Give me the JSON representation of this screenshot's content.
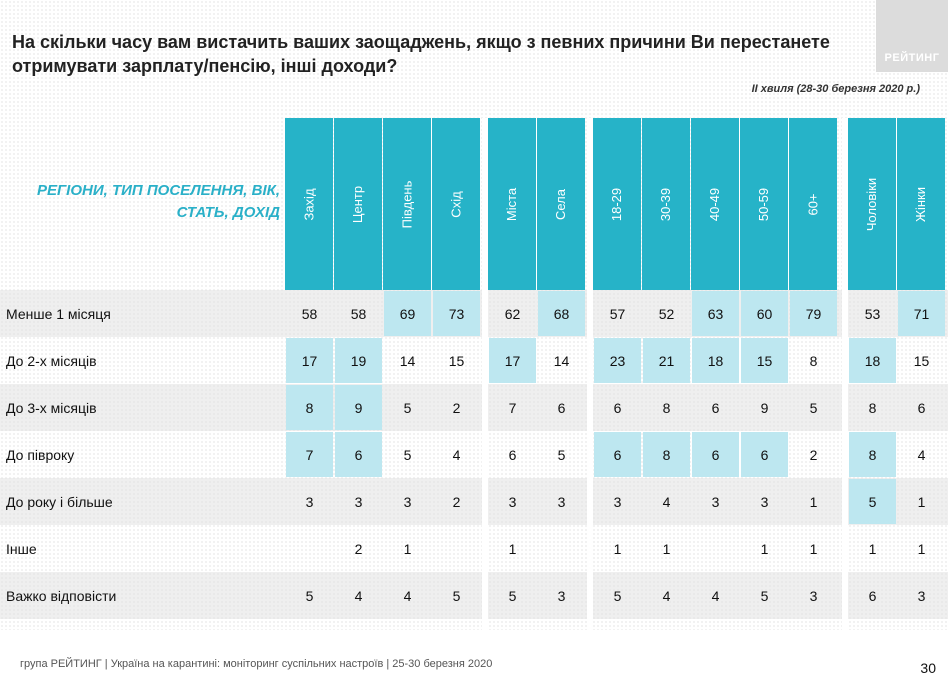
{
  "title": "На скільки часу вам вистачить ваших заощаджень, якщо з певних причини Ви перестанете отримувати зарплату/пенсію, інші доходи?",
  "logo_text": "РЕЙТИНГ",
  "wave": "ІІ хвиля (28-30 березня 2020 р.)",
  "section_title": "РЕГІОНИ, ТИП ПОСЕЛЕННЯ, ВІК, СТАТЬ, ДОХІД",
  "columns": [
    "Захід",
    "Центр",
    "Південь",
    "Схід",
    "Міста",
    "Села",
    "18-29",
    "30-39",
    "40-49",
    "50-59",
    "60+",
    "Чоловіки",
    "Жінки"
  ],
  "rows": [
    {
      "label": "Менше 1 місяця",
      "values": [
        "58",
        "58",
        "69",
        "73",
        "62",
        "68",
        "57",
        "52",
        "63",
        "60",
        "79",
        "53",
        "71"
      ],
      "highlight": [
        0,
        0,
        1,
        1,
        0,
        1,
        0,
        0,
        1,
        1,
        1,
        0,
        1
      ]
    },
    {
      "label": "До 2-х місяців",
      "values": [
        "17",
        "19",
        "14",
        "15",
        "17",
        "14",
        "23",
        "21",
        "18",
        "15",
        "8",
        "18",
        "15"
      ],
      "highlight": [
        1,
        1,
        0,
        0,
        1,
        0,
        1,
        1,
        1,
        1,
        0,
        1,
        0
      ]
    },
    {
      "label": "До 3-х місяців",
      "values": [
        "8",
        "9",
        "5",
        "2",
        "7",
        "6",
        "6",
        "8",
        "6",
        "9",
        "5",
        "8",
        "6"
      ],
      "highlight": [
        1,
        1,
        0,
        0,
        0,
        0,
        0,
        0,
        0,
        0,
        0,
        0,
        0
      ]
    },
    {
      "label": "До півроку",
      "values": [
        "7",
        "6",
        "5",
        "4",
        "6",
        "5",
        "6",
        "8",
        "6",
        "6",
        "2",
        "8",
        "4"
      ],
      "highlight": [
        1,
        1,
        0,
        0,
        0,
        0,
        1,
        1,
        1,
        1,
        0,
        1,
        0
      ]
    },
    {
      "label": "До року і більше",
      "values": [
        "3",
        "3",
        "3",
        "2",
        "3",
        "3",
        "3",
        "4",
        "3",
        "3",
        "1",
        "5",
        "1"
      ],
      "highlight": [
        0,
        0,
        0,
        0,
        0,
        0,
        0,
        0,
        0,
        0,
        0,
        1,
        0
      ]
    },
    {
      "label": "Інше",
      "values": [
        "",
        "2",
        "1",
        "",
        "1",
        "",
        "1",
        "1",
        "",
        "1",
        "1",
        "1",
        "1"
      ],
      "highlight": [
        0,
        0,
        0,
        0,
        0,
        0,
        0,
        0,
        0,
        0,
        0,
        0,
        0
      ]
    },
    {
      "label": "Важко відповісти",
      "values": [
        "5",
        "4",
        "4",
        "5",
        "5",
        "3",
        "5",
        "4",
        "4",
        "5",
        "3",
        "6",
        "3"
      ],
      "highlight": [
        0,
        0,
        0,
        0,
        0,
        0,
        0,
        0,
        0,
        0,
        0,
        0,
        0
      ]
    }
  ],
  "footer": "група РЕЙТИНГ  |  Україна на карантині: моніторинг суспільних настроїв  |  25-30 березня 2020",
  "page_number": "30",
  "colors": {
    "header": "#26b3c8",
    "highlight": "#bde7f0",
    "section_title": "#2ab0c8"
  }
}
